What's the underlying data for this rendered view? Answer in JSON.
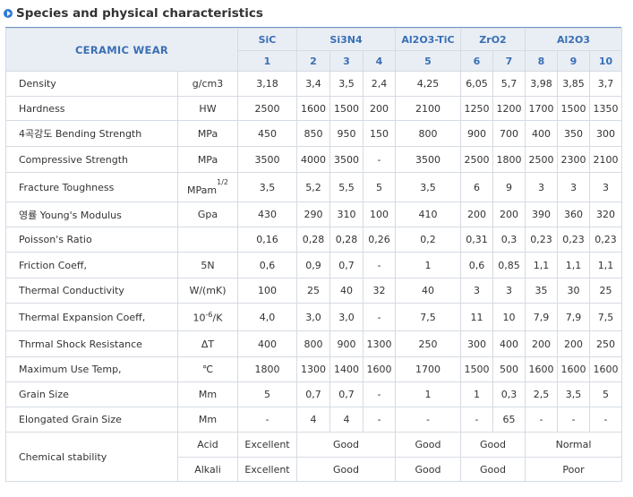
{
  "title": "Species and physical characteristics",
  "header": {
    "corner": "CERAMIC WEAR",
    "groups": [
      {
        "name": "SiC",
        "span": 1
      },
      {
        "name": "Si3N4",
        "span": 3
      },
      {
        "name": "Al2O3-TiC",
        "span": 1
      },
      {
        "name": "ZrO2",
        "span": 2
      },
      {
        "name": "Al2O3",
        "span": 3
      }
    ],
    "numbers": [
      "1",
      "2",
      "3",
      "4",
      "5",
      "6",
      "7",
      "8",
      "9",
      "10"
    ]
  },
  "rows": [
    {
      "label": "Density",
      "unit": "g/cm3",
      "values": [
        "3,18",
        "3,4",
        "3,5",
        "2,4",
        "4,25",
        "6,05",
        "5,7",
        "3,98",
        "3,85",
        "3,7"
      ]
    },
    {
      "label": "Hardness",
      "unit": "HW",
      "values": [
        "2500",
        "1600",
        "1500",
        "200",
        "2100",
        "1250",
        "1200",
        "1700",
        "1500",
        "1350"
      ]
    },
    {
      "label": "4곡강도 Bending Strength",
      "unit": "MPa",
      "values": [
        "450",
        "850",
        "950",
        "150",
        "800",
        "900",
        "700",
        "400",
        "350",
        "300"
      ]
    },
    {
      "label": "Compressive Strength",
      "unit": "MPa",
      "values": [
        "3500",
        "4000",
        "3500",
        "-",
        "3500",
        "2500",
        "1800",
        "2500",
        "2300",
        "2100"
      ]
    },
    {
      "label": "Fracture Toughness",
      "unit": "MPam",
      "unit_sup": "1/2",
      "values": [
        "3,5",
        "5,2",
        "5,5",
        "5",
        "3,5",
        "6",
        "9",
        "3",
        "3",
        "3"
      ]
    },
    {
      "label": "영률 Young's Modulus",
      "unit": "Gpa",
      "values": [
        "430",
        "290",
        "310",
        "100",
        "410",
        "200",
        "200",
        "390",
        "360",
        "320"
      ]
    },
    {
      "label": "Poisson's Ratio",
      "unit": "",
      "values": [
        "0,16",
        "0,28",
        "0,28",
        "0,26",
        "0,2",
        "0,31",
        "0,3",
        "0,23",
        "0,23",
        "0,23"
      ]
    },
    {
      "label": "Friction Coeff,",
      "unit": "5N",
      "values": [
        "0,6",
        "0,9",
        "0,7",
        "-",
        "1",
        "0,6",
        "0,85",
        "1,1",
        "1,1",
        "1,1"
      ]
    },
    {
      "label": "Thermal Conductivity",
      "unit": "W/(mK)",
      "values": [
        "100",
        "25",
        "40",
        "32",
        "40",
        "3",
        "3",
        "35",
        "30",
        "25"
      ]
    },
    {
      "label": "Thermal Expansion Coeff,",
      "unit_pre": "10",
      "unit_sup": "-6",
      "unit_post": "/K",
      "values": [
        "4,0",
        "3,0",
        "3,0",
        "-",
        "7,5",
        "11",
        "10",
        "7,9",
        "7,9",
        "7,5"
      ]
    },
    {
      "label": "Thrmal Shock Resistance",
      "unit": "ΔT",
      "values": [
        "400",
        "800",
        "900",
        "1300",
        "250",
        "300",
        "400",
        "200",
        "200",
        "250"
      ]
    },
    {
      "label": "Maximum Use Temp,",
      "unit": "℃",
      "values": [
        "1800",
        "1300",
        "1400",
        "1600",
        "1700",
        "1500",
        "500",
        "1600",
        "1600",
        "1600"
      ]
    },
    {
      "label": "Grain Size",
      "unit": "Mm",
      "values": [
        "5",
        "0,7",
        "0,7",
        "-",
        "1",
        "1",
        "0,3",
        "2,5",
        "3,5",
        "5"
      ]
    },
    {
      "label": "Elongated Grain Size",
      "unit": "Mm",
      "values": [
        "-",
        "4",
        "4",
        "-",
        "-",
        "-",
        "65",
        "-",
        "-",
        "-"
      ]
    }
  ],
  "chemical": {
    "label": "Chemical stability",
    "acid": {
      "unit": "Acid",
      "values": [
        "Excellent",
        "Good",
        "Good",
        "Good",
        "Normal"
      ]
    },
    "alkali": {
      "unit": "Alkali",
      "values": [
        "Excellent",
        "Good",
        "Good",
        "Good",
        "Poor"
      ]
    }
  }
}
